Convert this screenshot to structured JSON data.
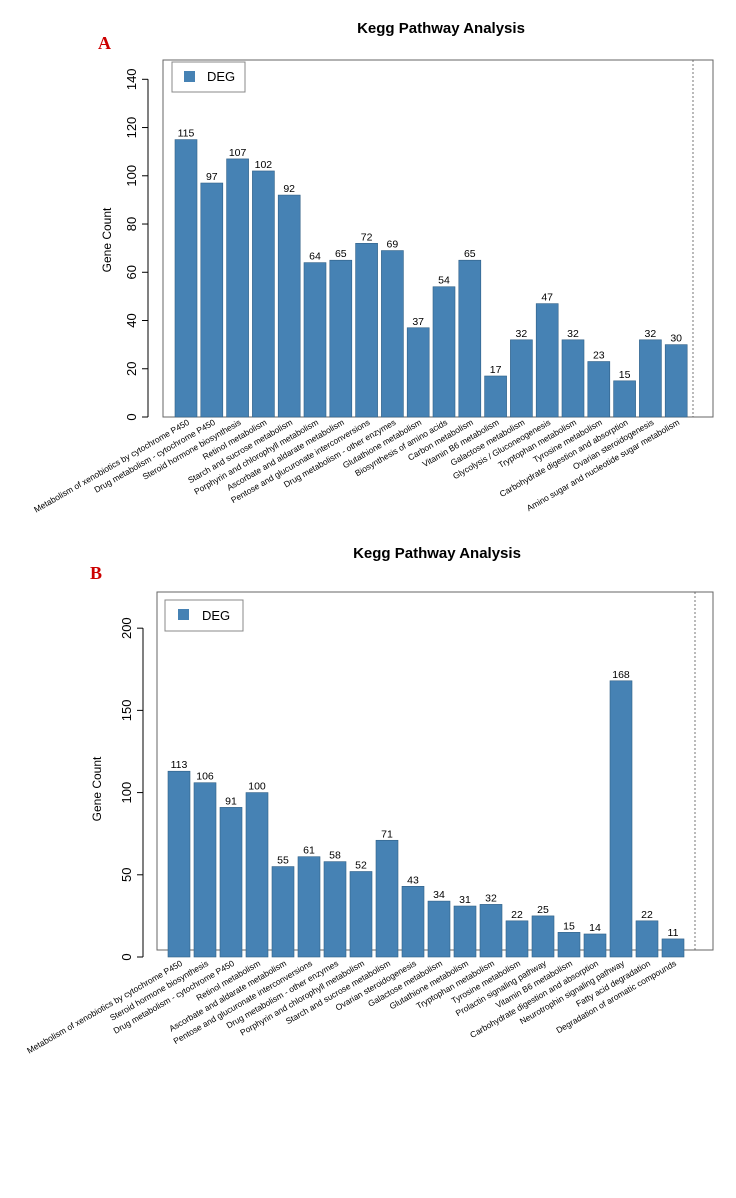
{
  "chart_data": [
    {
      "panel": "A",
      "type": "bar",
      "title": "Kegg Pathway Analysis",
      "ylabel": "Gene Count",
      "xlabel": "",
      "ylim": [
        0,
        148
      ],
      "yticks": [
        0,
        20,
        40,
        60,
        80,
        100,
        120,
        140
      ],
      "legend": {
        "label": "DEG",
        "placement": "top-left"
      },
      "colors": {
        "bar": "#4682b4",
        "panel_letter": "#cc0000"
      },
      "categories": [
        "Metabolism of xenobiotics by cytochrome P450",
        "Drug metabolism - cytochrome P450",
        "Steroid hormone biosynthesis",
        "Retinol metabolism",
        "Starch and sucrose metabolism",
        "Porphyrin and chlorophyll metabolism",
        "Ascorbate and aldarate metabolism",
        "Pentose and glucuronate interconversions",
        "Drug metabolism - other enzymes",
        "Glutathione metabolism",
        "Biosynthesis of amino acids",
        "Carbon metabolism",
        "Vitamin B6 metabolism",
        "Galactose metabolism",
        "Glycolysis / Gluconeogenesis",
        "Tryptophan metabolism",
        "Tyrosine metabolism",
        "Carbohydrate digestion and absorption",
        "Ovarian steroidogenesis",
        "Amino sugar and nucleotide sugar metabolism"
      ],
      "values": [
        115,
        97,
        107,
        102,
        92,
        64,
        65,
        72,
        69,
        37,
        54,
        65,
        17,
        32,
        47,
        32,
        23,
        15,
        32,
        30
      ]
    },
    {
      "panel": "B",
      "type": "bar",
      "title": "Kegg Pathway Analysis",
      "ylabel": "Gene Count",
      "xlabel": "",
      "ylim": [
        0,
        222
      ],
      "yticks": [
        0,
        50,
        100,
        150,
        200
      ],
      "legend": {
        "label": "DEG",
        "placement": "top-left"
      },
      "colors": {
        "bar": "#4682b4",
        "panel_letter": "#cc0000"
      },
      "categories": [
        "Metabolism of xenobiotics by cytochrome P450",
        "Steroid hormone biosynthesis",
        "Drug metabolism - cytochrome P450",
        "Retinol metabolism",
        "Ascorbate and aldarate metabolism",
        "Pentose and glucuronate interconversions",
        "Drug metabolism - other enzymes",
        "Porphyrin and chlorophyll metabolism",
        "Starch and sucrose metabolism",
        "Ovarian steroidogenesis",
        "Galactose metabolism",
        "Glutathione metabolism",
        "Tryptophan metabolism",
        "Tyrosine metabolism",
        "Prolactin signaling pathway",
        "Vitamin B6 metabolism",
        "Carbohydrate digestion and absorption",
        "Neurotrophin signaling pathway",
        "Fatty acid degradation",
        "Degradation of aromatic compounds"
      ],
      "values": [
        113,
        106,
        91,
        100,
        55,
        61,
        58,
        52,
        71,
        43,
        34,
        31,
        32,
        22,
        25,
        15,
        14,
        168,
        22,
        11
      ]
    }
  ]
}
